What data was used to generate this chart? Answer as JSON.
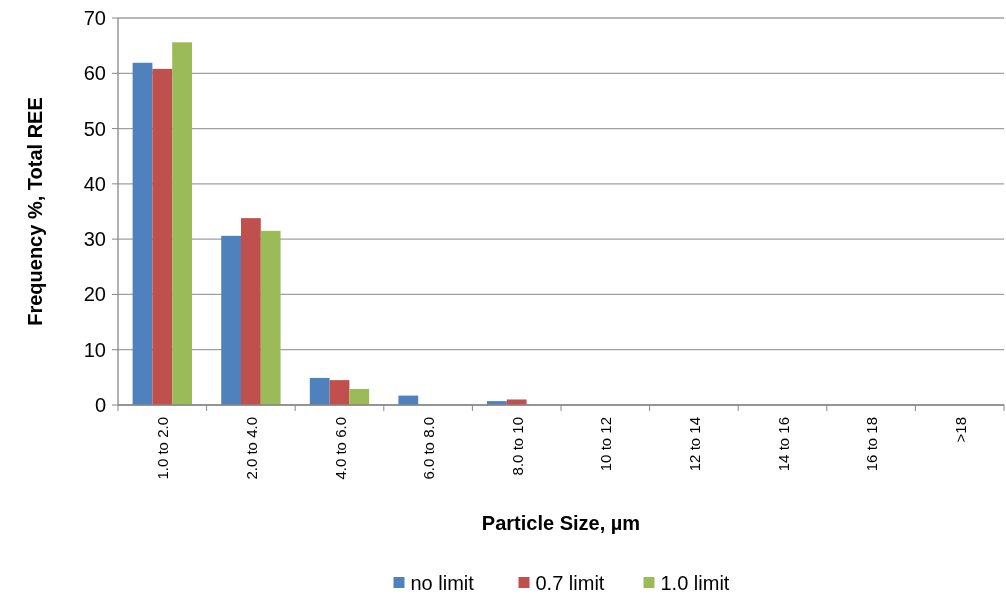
{
  "chart_data": {
    "type": "bar",
    "xlabel": "Particle Size, µm",
    "ylabel": "Frequency %, Total REE",
    "categories": [
      "1.0 to 2.0",
      "2.0 to 4.0",
      "4.0 to 6.0",
      "6.0 to 8.0",
      "8.0 to 10",
      "10 to 12",
      "12 to 14",
      "14 to 16",
      "16 to 18",
      ">18"
    ],
    "series": [
      {
        "name": "no limit",
        "color": "#4f81bd",
        "values": [
          61.9,
          30.6,
          4.9,
          1.7,
          0.7,
          0,
          0,
          0,
          0,
          0
        ]
      },
      {
        "name": "0.7 limit",
        "color": "#c0504d",
        "values": [
          60.8,
          33.8,
          4.5,
          0,
          1.0,
          0,
          0,
          0,
          0,
          0
        ]
      },
      {
        "name": "1.0 limit",
        "color": "#9bbb59",
        "values": [
          65.6,
          31.5,
          2.9,
          0,
          0,
          0,
          0,
          0,
          0,
          0
        ]
      }
    ],
    "ylim": [
      0,
      70
    ],
    "yticks": [
      0,
      10,
      20,
      30,
      40,
      50,
      60,
      70
    ],
    "grid": "y",
    "legend": "bottom"
  }
}
